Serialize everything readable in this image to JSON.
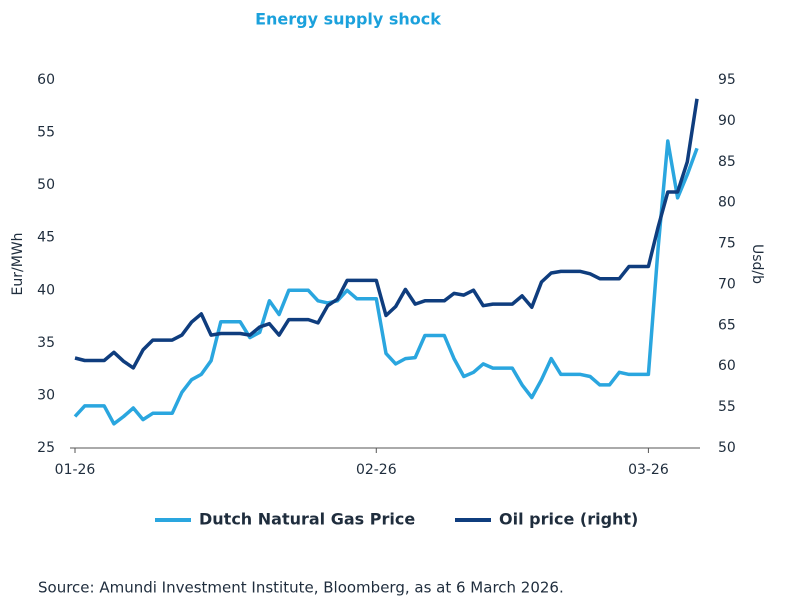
{
  "chart_data": {
    "type": "line",
    "title": "Energy supply shock",
    "y_label": "Eur/MWh",
    "y2_label": "Usd/b",
    "source": "Source: Amundi Investment Institute, Bloomberg, as at 6 March 2026.",
    "categories": [
      "01-26",
      null,
      null,
      null,
      null,
      null,
      null,
      null,
      null,
      null,
      null,
      null,
      null,
      null,
      null,
      null,
      null,
      null,
      null,
      null,
      null,
      null,
      null,
      null,
      null,
      null,
      null,
      null,
      null,
      null,
      null,
      "02-26",
      null,
      null,
      null,
      null,
      null,
      null,
      null,
      null,
      null,
      null,
      null,
      null,
      null,
      null,
      null,
      null,
      null,
      null,
      null,
      null,
      null,
      null,
      null,
      null,
      null,
      null,
      null,
      "03-26",
      null,
      null,
      null,
      null,
      null
    ],
    "series": [
      {
        "name": "Dutch Natural Gas Price",
        "color": "#2aa6df",
        "values": [
          28,
          29,
          29,
          29,
          27.3,
          28,
          28.8,
          27.7,
          28.3,
          28.3,
          28.3,
          30.3,
          31.5,
          32,
          33.3,
          37,
          37,
          37,
          35.5,
          36,
          39,
          37.7,
          40,
          40,
          40,
          39,
          38.8,
          39,
          40,
          39.2,
          39.2,
          39.2,
          34,
          33,
          33.5,
          33.6,
          35.7,
          35.7,
          35.7,
          33.5,
          31.8,
          32.2,
          33,
          32.6,
          32.6,
          32.6,
          31,
          29.8,
          31.5,
          33.5,
          32,
          32,
          32,
          31.8,
          31,
          31,
          32.2,
          32,
          32,
          32,
          44,
          54.2,
          48.8,
          51,
          53.5
        ]
      },
      {
        "name": "Oil price (right)",
        "color": "#0f3d7e",
        "axis": "y2",
        "values": [
          61,
          60.7,
          60.7,
          60.7,
          61.7,
          60.6,
          59.8,
          62,
          63.2,
          63.2,
          63.2,
          63.8,
          65.4,
          66.4,
          63.8,
          64,
          64,
          64,
          63.8,
          64.8,
          65.2,
          63.8,
          65.7,
          65.7,
          65.7,
          65.3,
          67.4,
          68.2,
          70.5,
          70.5,
          70.5,
          70.5,
          66.2,
          67.3,
          69.4,
          67.6,
          68,
          68,
          68,
          68.9,
          68.7,
          69.3,
          67.4,
          67.6,
          67.6,
          67.6,
          68.6,
          67.2,
          70.3,
          71.4,
          71.6,
          71.6,
          71.6,
          71.3,
          70.7,
          70.7,
          70.7,
          72.2,
          72.2,
          72.2,
          77,
          81.3,
          81.3,
          85,
          92.7
        ]
      }
    ],
    "ylim": [
      25,
      60
    ],
    "yticks": [
      25,
      30,
      35,
      40,
      45,
      50,
      55,
      60
    ],
    "y2lim": [
      50,
      95
    ],
    "y2ticks": [
      50,
      55,
      60,
      65,
      70,
      75,
      80,
      85,
      90,
      95
    ],
    "grid": false,
    "legend": "bottom"
  }
}
